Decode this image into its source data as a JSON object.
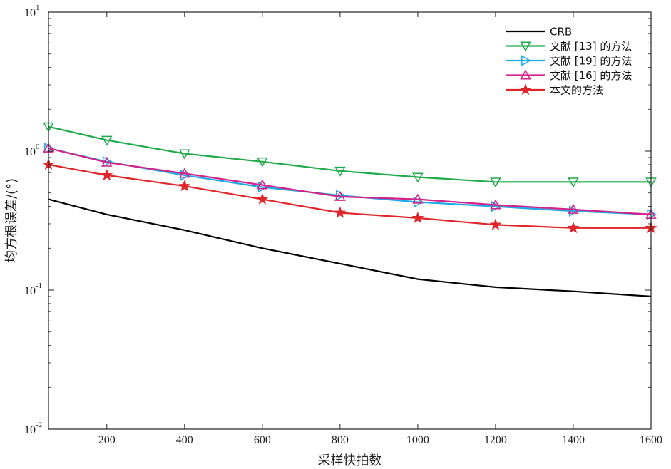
{
  "chart_data": {
    "type": "line",
    "xlabel": "采样快拍数",
    "ylabel": "均方根误差/(°)",
    "x": [
      50,
      200,
      400,
      600,
      800,
      1000,
      1200,
      1400,
      1600
    ],
    "xlim": [
      50,
      1600
    ],
    "xticks": [
      200,
      400,
      600,
      800,
      1000,
      1200,
      1400,
      1600
    ],
    "ylim": [
      0.01,
      10
    ],
    "yscale": "log",
    "yticks": [
      {
        "value": 10,
        "base": "10",
        "exp": "1"
      },
      {
        "value": 1,
        "base": "10",
        "exp": "0"
      },
      {
        "value": 0.1,
        "base": "10",
        "exp": "-1"
      },
      {
        "value": 0.01,
        "base": "10",
        "exp": "-2"
      }
    ],
    "grid": false,
    "legend_position": "top-right",
    "series": [
      {
        "name": "CRB",
        "color": "#000000",
        "marker": "none",
        "values": [
          0.45,
          0.35,
          0.27,
          0.2,
          0.155,
          0.12,
          0.105,
          0.098,
          0.09
        ]
      },
      {
        "name": "文献 [13] 的方法",
        "color": "#1faa4a",
        "marker": "triangle-down",
        "values": [
          1.5,
          1.2,
          0.96,
          0.84,
          0.72,
          0.65,
          0.6,
          0.6,
          0.6
        ]
      },
      {
        "name": "文献 [19] 的方法",
        "color": "#1fa8e6",
        "marker": "triangle-right",
        "values": [
          1.05,
          0.84,
          0.67,
          0.55,
          0.48,
          0.43,
          0.4,
          0.37,
          0.35
        ]
      },
      {
        "name": "文献 [16] 的方法",
        "color": "#d4228a",
        "marker": "triangle-up",
        "values": [
          1.05,
          0.83,
          0.69,
          0.57,
          0.47,
          0.45,
          0.41,
          0.38,
          0.35
        ]
      },
      {
        "name": "本文的方法",
        "color": "#e0262a",
        "marker": "star",
        "values": [
          0.8,
          0.67,
          0.56,
          0.45,
          0.36,
          0.33,
          0.295,
          0.28,
          0.28
        ]
      }
    ]
  }
}
